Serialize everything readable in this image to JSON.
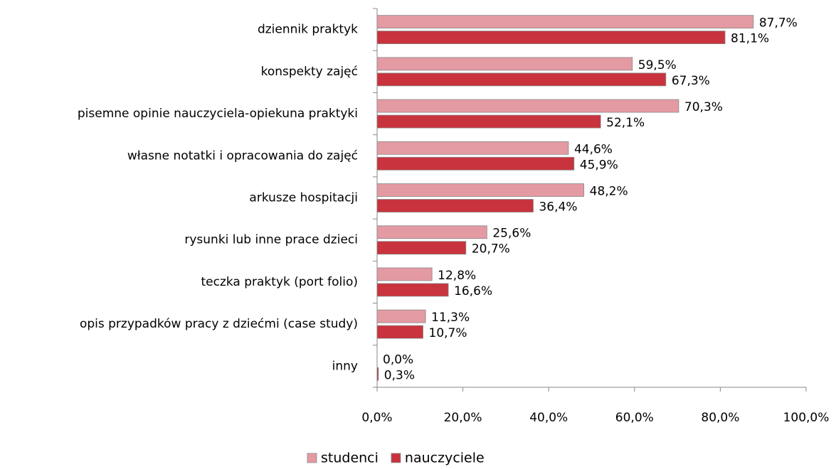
{
  "chart_data": {
    "type": "hbar",
    "categories": [
      "dziennik praktyk",
      "konspekty zajęć",
      "pisemne opinie nauczyciela-opiekuna praktyki",
      "własne notatki  i opracowania do zajęć",
      "arkusze hospitacji",
      "rysunki lub inne prace dzieci",
      "teczka praktyk (port folio)",
      "opis przypadków pracy z dziećmi (case study)",
      "inny"
    ],
    "series": [
      {
        "name": "studenci",
        "color": "#e49aa2",
        "values": [
          87.7,
          59.5,
          70.3,
          44.6,
          48.2,
          25.6,
          12.8,
          11.3,
          0.0
        ],
        "value_labels": [
          "87,7%",
          "59,5%",
          "70,3%",
          "44,6%",
          "48,2%",
          "25,6%",
          "12,8%",
          "11,3%",
          "0,0%"
        ]
      },
      {
        "name": "nauczyciele",
        "color": "#c8333d",
        "values": [
          81.1,
          67.3,
          52.1,
          45.9,
          36.4,
          20.7,
          16.6,
          10.7,
          0.3
        ],
        "value_labels": [
          "81,1%",
          "67,3%",
          "52,1%",
          "45,9%",
          "36,4%",
          "20,7%",
          "16,6%",
          "10,7%",
          "0,3%"
        ]
      }
    ],
    "xlim": [
      0,
      100
    ],
    "xticks": [
      {
        "value": 0,
        "label": "0,0%"
      },
      {
        "value": 20,
        "label": "20,0%"
      },
      {
        "value": 40,
        "label": "40,0%"
      },
      {
        "value": 60,
        "label": "60,0%"
      },
      {
        "value": 80,
        "label": "80,0%"
      },
      {
        "value": 100,
        "label": "100,0%"
      }
    ],
    "legend": "bottom"
  }
}
